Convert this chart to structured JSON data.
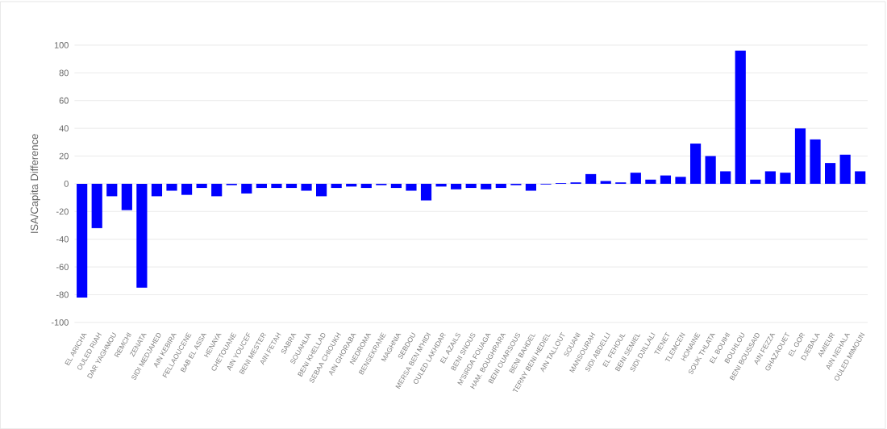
{
  "chart_data": {
    "type": "bar",
    "ylabel": "ISA/Capita Difference",
    "categories": [
      "EL ARICHA",
      "OULED RIAH",
      "DAR YAGHMOU",
      "REMCHI",
      "ZENATA",
      "SIDI MEDJAHED",
      "AIN KEBIRA",
      "FELLAOUCENE",
      "BAB EL ASSA",
      "HENAYA",
      "CHETOUANE",
      "AIN YOUCEF",
      "BENI MESTER",
      "AIN FETAH",
      "SABRA",
      "SOUAHLIA",
      "BENI KHELLAD",
      "SEBAA CHIOUKH",
      "AIN GHORABA",
      "NEDROMA",
      "BENSEKRANE",
      "MAGHNIA",
      "SEBDOU",
      "MERSA BEN M'HIDI",
      "OULED LAKHDAR",
      "EL AZAILS",
      "BENI SNOUS",
      "M'SIRDA FOUAGA",
      "HAM. BOUGHRARA",
      "BENI OUARSOUS",
      "BENI BAHDEL",
      "TERNY BENI HEDIEL",
      "AIN TALLOUT",
      "SOUANI",
      "MANSOURAH",
      "SIDI ABDELLI",
      "EL FEHOUL",
      "BENI SEMIEL",
      "SIDI DJILLALI",
      "TIENET",
      "TLEMCEN",
      "HONAINE",
      "SOUK THLATA",
      "EL BOUIHI",
      "BOUHLOU",
      "BENI BOUSSAID",
      "AIN FEZZA",
      "GHAZAOUET",
      "EL GOR",
      "DJEBALA",
      "AMIEUR",
      "AIN NEHALA",
      "OULED MIMOUN"
    ],
    "values": [
      -82,
      -32,
      -9,
      -19,
      -75,
      -9,
      -5,
      -8,
      -3,
      -9,
      -1,
      -7,
      -3,
      -3,
      -3,
      -5,
      -9,
      -3,
      -2,
      -3,
      -1,
      -3,
      -5,
      -12,
      -2,
      -4,
      -3,
      -4,
      -3,
      -1,
      -5,
      -0.5,
      0.5,
      1,
      7,
      2,
      1,
      8,
      3,
      6,
      5,
      29,
      20,
      9,
      96,
      3,
      9,
      8,
      40,
      32,
      15,
      21,
      9
    ],
    "color": "#0000ff",
    "ylim": [
      -100,
      100
    ],
    "yticks": [
      -100,
      -80,
      -60,
      -40,
      -20,
      0,
      20,
      40,
      60,
      80,
      100
    ],
    "grid": "y"
  }
}
